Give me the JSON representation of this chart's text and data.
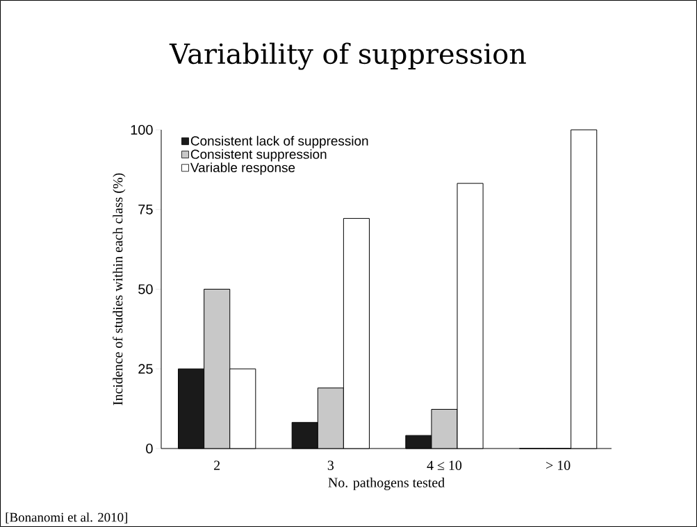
{
  "chart_data": {
    "type": "bar",
    "title": "Variability of suppression",
    "xlabel": "No. pathogens tested",
    "ylabel": "Incidence of studies within each class (%)",
    "categories": [
      "2",
      "3",
      "4 ≤ 10",
      "> 10"
    ],
    "series": [
      {
        "name": "Consistent lack of suppression",
        "color": "#1a1a1a",
        "values": [
          25,
          8.2,
          4.1,
          0
        ]
      },
      {
        "name": "Consistent suppression",
        "color": "#c8c8c8",
        "values": [
          50,
          19,
          12.3,
          0
        ]
      },
      {
        "name": "Variable response",
        "color": "#ffffff",
        "values": [
          25,
          72.2,
          83.2,
          100
        ]
      }
    ],
    "ylim": [
      0,
      100
    ],
    "yticks": [
      0,
      25,
      50,
      75,
      100
    ],
    "grid": false,
    "legend": "top left",
    "annotations": [
      "[Bonanomi et al. 2010]"
    ]
  }
}
